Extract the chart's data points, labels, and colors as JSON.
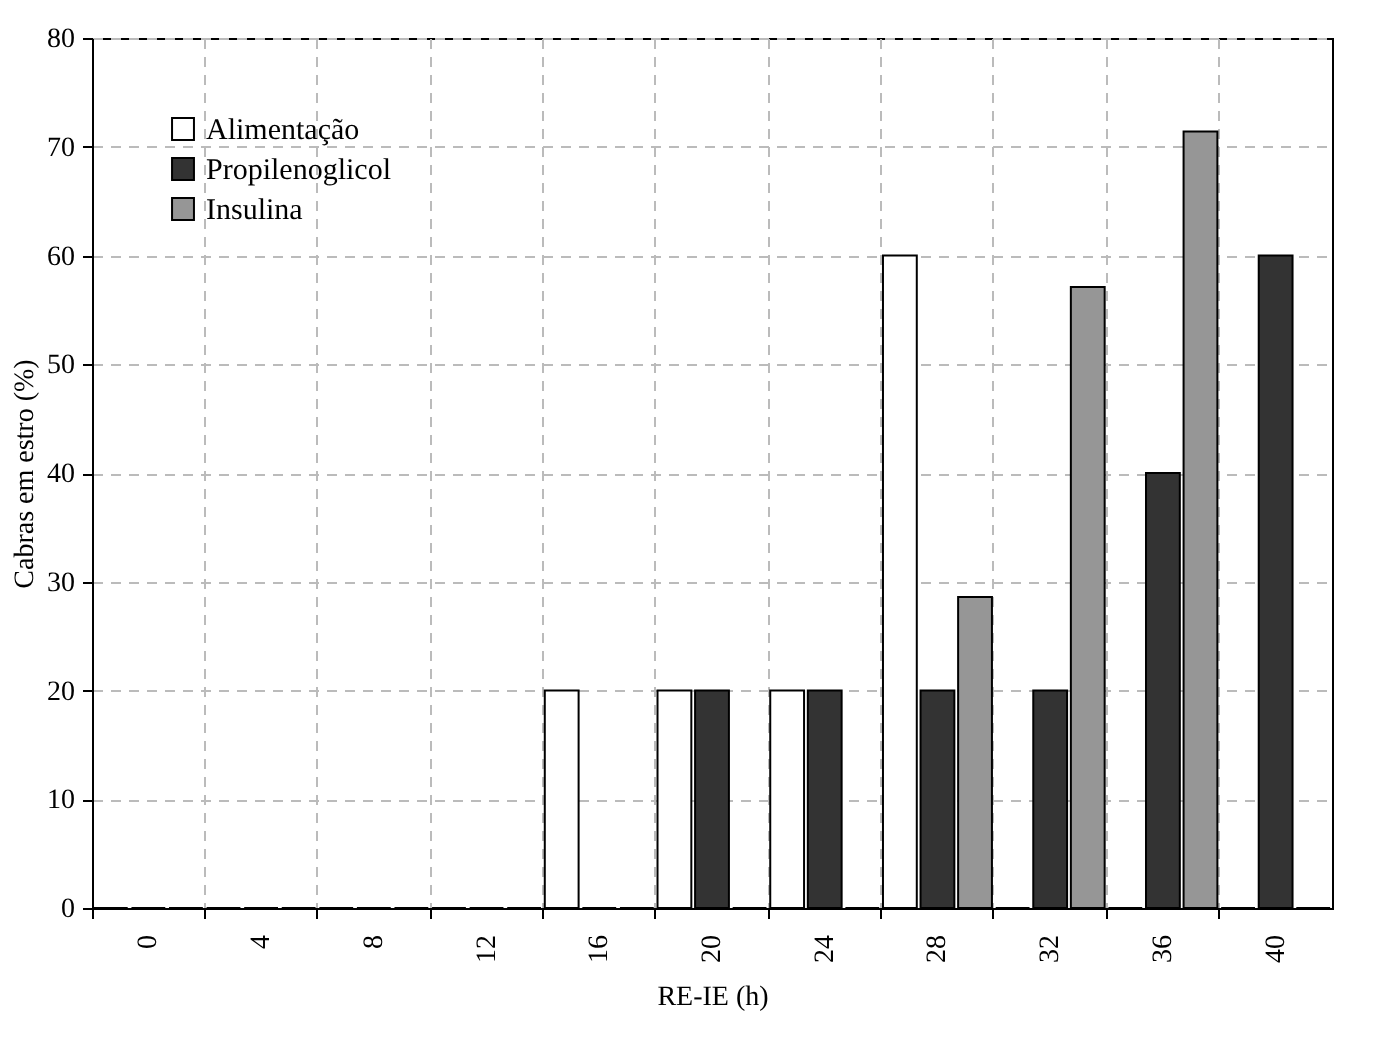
{
  "chart_data": {
    "type": "bar",
    "xlabel": "RE-IE (h)",
    "ylabel": "Cabras em estro (%)",
    "categories": [
      "0",
      "4",
      "8",
      "12",
      "16",
      "20",
      "24",
      "28",
      "32",
      "36",
      "40"
    ],
    "series": [
      {
        "name": "Alimentação",
        "color": "#ffffff",
        "values": [
          0,
          0,
          0,
          0,
          20,
          20,
          20,
          60,
          0,
          0,
          0
        ]
      },
      {
        "name": "Propilenoglicol",
        "color": "#333333",
        "values": [
          0,
          0,
          0,
          0,
          0,
          20,
          20,
          20,
          20,
          40,
          60
        ]
      },
      {
        "name": "Insulina",
        "color": "#969696",
        "values": [
          0,
          0,
          0,
          0,
          0,
          0,
          0,
          28.6,
          57.1,
          71.4,
          0
        ]
      }
    ],
    "ylim": [
      0,
      80
    ],
    "yticks": [
      0,
      10,
      20,
      30,
      40,
      50,
      60,
      70,
      80
    ],
    "grid": true,
    "legend": "top left"
  }
}
